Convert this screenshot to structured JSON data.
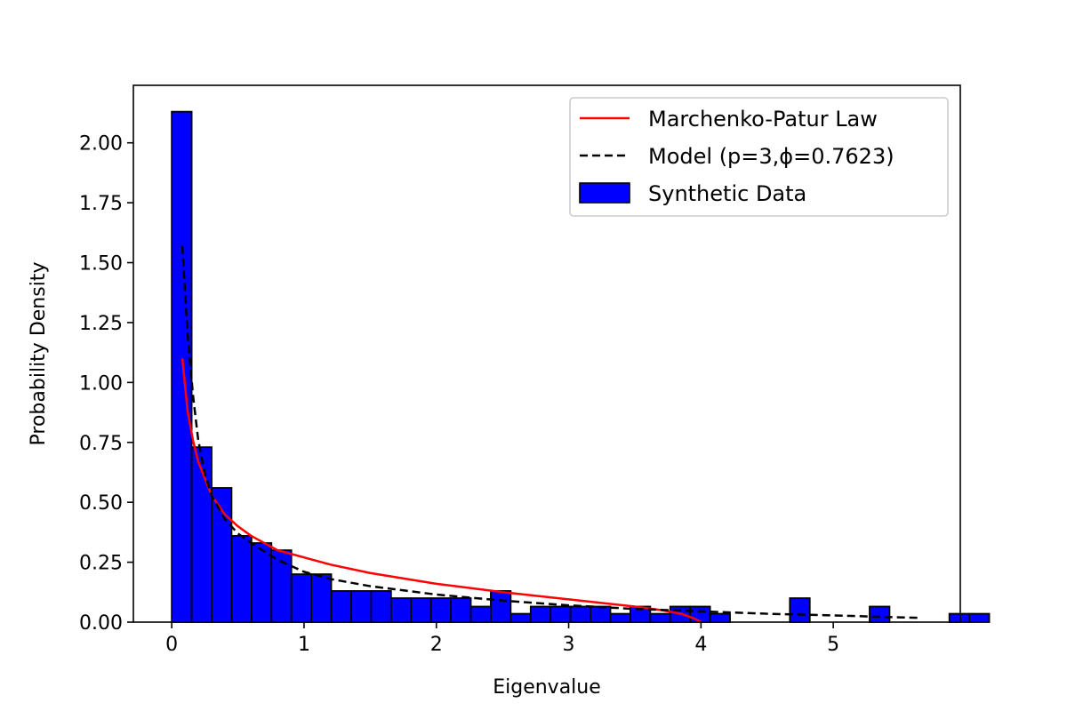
{
  "chart_data": {
    "type": "histogram",
    "xlabel": "Eigenvalue",
    "ylabel": "Probability Density",
    "xlim": [
      -0.29,
      5.96
    ],
    "ylim": [
      0,
      2.24
    ],
    "xticks": [
      0,
      1,
      2,
      3,
      4,
      5
    ],
    "xtick_labels": [
      "0",
      "1",
      "2",
      "3",
      "4",
      "5"
    ],
    "yticks": [
      0,
      0.25,
      0.5,
      0.75,
      1.0,
      1.25,
      1.5,
      1.75,
      2.0
    ],
    "ytick_labels": [
      "0.00",
      "0.25",
      "0.50",
      "0.75",
      "1.00",
      "1.25",
      "1.50",
      "1.75",
      "2.00"
    ],
    "grid": false,
    "legend_position": "top-right",
    "legend": [
      {
        "label": "Marchenko-Patur Law",
        "style": "line",
        "color": "#ff0000"
      },
      {
        "label": "Model (p=3,ϕ=0.7623)",
        "style": "dashed",
        "color": "#000000"
      },
      {
        "label": "Synthetic Data",
        "style": "patch",
        "color": "#0000ff"
      }
    ],
    "series": [
      {
        "name": "Synthetic Data",
        "kind": "histogram",
        "color": "#0000ff",
        "edgecolor": "#000000",
        "bin_start": 0.0,
        "bin_width": 0.1507,
        "values": [
          2.13,
          0.73,
          0.56,
          0.36,
          0.33,
          0.3,
          0.2,
          0.2,
          0.13,
          0.13,
          0.13,
          0.1,
          0.1,
          0.1,
          0.1,
          0.065,
          0.13,
          0.035,
          0.065,
          0.065,
          0.065,
          0.065,
          0.035,
          0.065,
          0.035,
          0.065,
          0.065,
          0.035,
          0.0,
          0.0,
          0.0,
          0.1,
          0.0,
          0.0,
          0.0,
          0.065,
          0.0,
          0.0,
          0.0,
          0.035,
          0.035
        ]
      },
      {
        "name": "Marchenko-Patur Law",
        "kind": "line",
        "color": "#ff0000",
        "dash": "solid",
        "x": [
          0.08,
          0.12,
          0.16,
          0.2,
          0.3,
          0.4,
          0.5,
          0.6,
          0.8,
          1.0,
          1.2,
          1.5,
          2.0,
          2.5,
          3.0,
          3.5,
          3.7,
          3.85,
          3.95,
          4.0
        ],
        "y": [
          1.1,
          0.88,
          0.76,
          0.67,
          0.53,
          0.45,
          0.4,
          0.36,
          0.3,
          0.27,
          0.24,
          0.205,
          0.16,
          0.125,
          0.095,
          0.065,
          0.05,
          0.035,
          0.015,
          0.0
        ]
      },
      {
        "name": "Model (p=3,ϕ=0.7623)",
        "kind": "line",
        "color": "#000000",
        "dash": "dashed",
        "x": [
          0.08,
          0.12,
          0.16,
          0.2,
          0.25,
          0.3,
          0.4,
          0.5,
          0.6,
          0.8,
          1.0,
          1.2,
          1.5,
          2.0,
          2.5,
          3.0,
          3.5,
          4.0,
          4.5,
          5.0,
          5.5,
          5.65
        ],
        "y": [
          1.57,
          1.2,
          0.95,
          0.76,
          0.62,
          0.53,
          0.43,
          0.37,
          0.33,
          0.26,
          0.21,
          0.18,
          0.15,
          0.115,
          0.09,
          0.07,
          0.055,
          0.045,
          0.035,
          0.028,
          0.02,
          0.018
        ]
      }
    ]
  }
}
